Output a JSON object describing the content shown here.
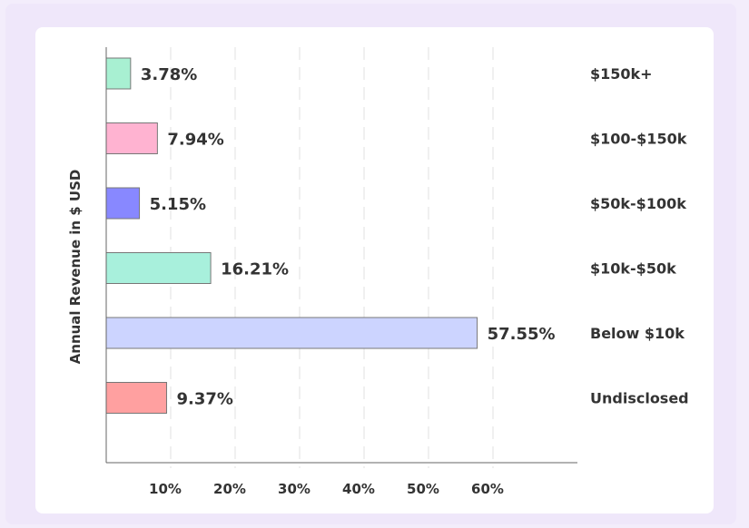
{
  "chart_data": {
    "type": "bar",
    "orientation": "horizontal",
    "ylabel": "Annual Revenue in $ USD",
    "categories": [
      "$150k+",
      "$100-$150k",
      "$50k-$100k",
      "$10k-$50k",
      "Below $10k",
      "Undisclosed"
    ],
    "values": [
      3.78,
      7.94,
      5.15,
      16.21,
      57.55,
      9.37
    ],
    "value_labels": [
      "3.78%",
      "7.94%",
      "5.15%",
      "16.21%",
      "57.55%",
      "9.37%"
    ],
    "colors": [
      "#a8f0d2",
      "#ffb3d1",
      "#8888ff",
      "#a8f0dc",
      "#ccd4ff",
      "#ffa0a0"
    ],
    "x_ticks": [
      10,
      20,
      30,
      40,
      50,
      60
    ],
    "x_tick_labels": [
      "10%",
      "20%",
      "30%",
      "40%",
      "50%",
      "60%"
    ],
    "xlim": [
      0,
      73
    ],
    "grid": "vertical dashed",
    "legend": "none"
  }
}
